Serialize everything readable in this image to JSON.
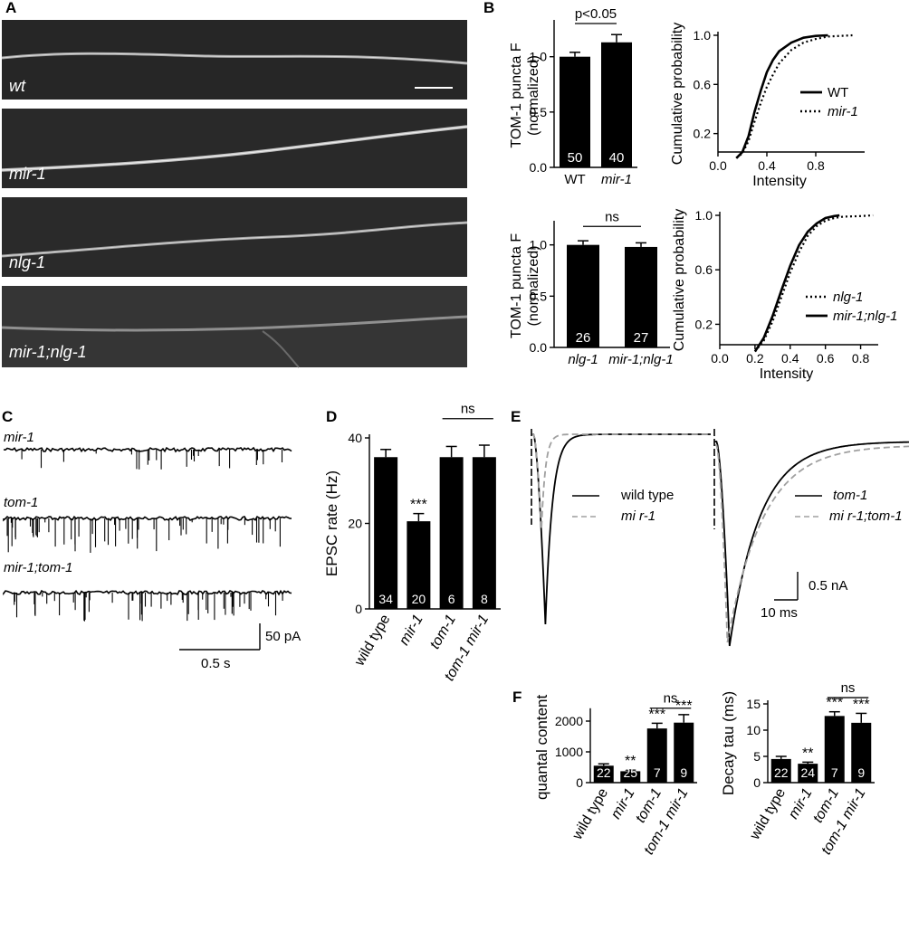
{
  "figure": {
    "panel_letters": [
      "A",
      "B",
      "C",
      "D",
      "E",
      "F"
    ]
  },
  "panel_a": {
    "images": [
      {
        "label": "wt"
      },
      {
        "label": "mir-1"
      },
      {
        "label": "nlg-1"
      },
      {
        "label": "mir-1;nlg-1"
      }
    ]
  },
  "panel_c": {
    "traces": [
      {
        "label": "mir-1"
      },
      {
        "label": "tom-1"
      },
      {
        "label": "mir-1;tom-1"
      }
    ],
    "scale_y": "50 pA",
    "scale_x": "0.5 s"
  },
  "panel_e": {
    "scale_y": "0.5 nA",
    "scale_x": "10 ms",
    "left": {
      "legend": [
        "wild type",
        "mi r-1"
      ]
    },
    "right": {
      "legend": [
        "tom-1",
        "mi r-1;tom-1"
      ]
    }
  },
  "chart_data": [
    {
      "id": "B-top-bar",
      "type": "bar",
      "ylabel": "TOM-1  puncta F\n(normalized)",
      "ylim": [
        0,
        1.3
      ],
      "yticks": [
        "0.0",
        "0.5",
        "1.0"
      ],
      "categories": [
        "WT",
        "mir-1"
      ],
      "values": [
        1.0,
        1.13
      ],
      "errors": [
        0.04,
        0.07
      ],
      "n": [
        "50",
        "40"
      ],
      "annotation": "p<0.05"
    },
    {
      "id": "B-top-cdf",
      "type": "line",
      "xlabel": "Intensity",
      "ylabel": "Cumulative probability",
      "xticks": [
        "0.0",
        "0.4",
        "0.8"
      ],
      "yticks": [
        "0.2",
        "0.6",
        "1.0"
      ],
      "series": [
        {
          "name": "WT",
          "style": "solid",
          "x": [
            0.15,
            0.2,
            0.25,
            0.3,
            0.35,
            0.4,
            0.45,
            0.5,
            0.6,
            0.7,
            0.8,
            0.9
          ],
          "y": [
            0.0,
            0.05,
            0.18,
            0.38,
            0.55,
            0.7,
            0.8,
            0.87,
            0.94,
            0.98,
            0.995,
            1.0
          ]
        },
        {
          "name": "mir-1",
          "style": "dotted",
          "x": [
            0.15,
            0.2,
            0.25,
            0.3,
            0.35,
            0.4,
            0.45,
            0.5,
            0.6,
            0.7,
            0.8,
            0.9,
            1.0,
            1.1
          ],
          "y": [
            0.0,
            0.04,
            0.14,
            0.3,
            0.45,
            0.58,
            0.68,
            0.77,
            0.88,
            0.94,
            0.97,
            0.99,
            0.995,
            1.0
          ]
        }
      ]
    },
    {
      "id": "B-bottom-bar",
      "type": "bar",
      "ylabel": "TOM-1  puncta F\n(normalized)",
      "ylim": [
        0,
        1.2
      ],
      "yticks": [
        "0.0",
        "0.5",
        "1.0"
      ],
      "categories": [
        "nlg-1",
        "mir-1;nlg-1"
      ],
      "values": [
        1.0,
        0.98
      ],
      "errors": [
        0.04,
        0.04
      ],
      "n": [
        "26",
        "27"
      ],
      "annotation": "ns"
    },
    {
      "id": "B-bottom-cdf",
      "type": "line",
      "xlabel": "Intensity",
      "ylabel": "Cumulative probability",
      "xticks": [
        "0.0",
        "0.2",
        "0.4",
        "0.6",
        "0.8"
      ],
      "yticks": [
        "0.2",
        "0.6",
        "1.0"
      ],
      "series": [
        {
          "name": "nlg-1",
          "style": "dotted",
          "x": [
            0.2,
            0.25,
            0.3,
            0.35,
            0.4,
            0.45,
            0.5,
            0.55,
            0.6,
            0.65,
            0.7,
            0.8,
            0.87
          ],
          "y": [
            0.0,
            0.08,
            0.22,
            0.4,
            0.58,
            0.73,
            0.85,
            0.92,
            0.96,
            0.98,
            0.99,
            0.995,
            1.0
          ]
        },
        {
          "name": "mir-1;nlg-1",
          "style": "solid",
          "x": [
            0.2,
            0.25,
            0.3,
            0.35,
            0.4,
            0.45,
            0.5,
            0.55,
            0.6,
            0.65,
            0.68
          ],
          "y": [
            0.0,
            0.1,
            0.26,
            0.45,
            0.63,
            0.78,
            0.88,
            0.94,
            0.98,
            0.995,
            1.0
          ]
        }
      ]
    },
    {
      "id": "D",
      "type": "bar",
      "ylabel": "EPSC rate (Hz)",
      "ylim": [
        0,
        40
      ],
      "yticks": [
        "0",
        "20",
        "40"
      ],
      "categories": [
        "wild type",
        "mir-1",
        "tom-1",
        "tom-1 mir-1"
      ],
      "values": [
        35.5,
        20.5,
        35.5,
        35.5
      ],
      "errors": [
        1.8,
        1.8,
        2.5,
        2.8
      ],
      "n": [
        "34",
        "20",
        "6",
        "8"
      ],
      "significance": [
        "",
        "***",
        "",
        ""
      ],
      "bracket": "ns"
    },
    {
      "id": "F-left",
      "type": "bar",
      "ylabel": "quantal content",
      "ylim": [
        0,
        2300
      ],
      "yticks": [
        "0",
        "1000",
        "2000"
      ],
      "categories": [
        "wild type",
        "mir-1",
        "tom-1",
        "tom-1 mir-1"
      ],
      "values": [
        550,
        370,
        1760,
        1950
      ],
      "errors": [
        60,
        40,
        170,
        260
      ],
      "n": [
        "22",
        "25",
        "7",
        "9"
      ],
      "significance": [
        "",
        "**",
        "***",
        "***"
      ],
      "bracket": "ns"
    },
    {
      "id": "F-right",
      "type": "bar",
      "ylabel": "Decay tau (ms)",
      "ylim": [
        0,
        15
      ],
      "yticks": [
        "0",
        "5",
        "10",
        "15"
      ],
      "categories": [
        "wild type",
        "mir-1",
        "tom-1",
        "tom-1 mir-1"
      ],
      "values": [
        4.5,
        3.6,
        12.7,
        11.4
      ],
      "errors": [
        0.5,
        0.3,
        0.8,
        1.8
      ],
      "n": [
        "22",
        "24",
        "7",
        "9"
      ],
      "significance": [
        "",
        "**",
        "***",
        "***"
      ],
      "bracket": "ns"
    }
  ]
}
